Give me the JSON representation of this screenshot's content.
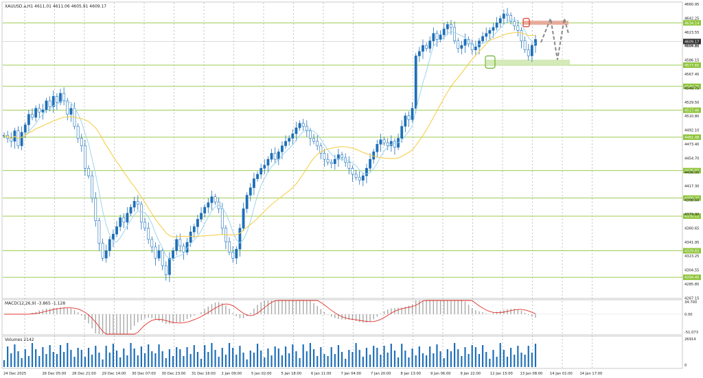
{
  "symbol_header": "XAUUSD.a,H1  4611.01 4611.06 4605.91 4609.17",
  "macd_label": "MACD(12,26,9) -3.865 -1.128",
  "volume_label": "Volumes 2142",
  "price_axis": {
    "labels": [
      "4660.95",
      "4642.25",
      "4623.55",
      "4604.85",
      "4586.15",
      "4567.45",
      "4548.75",
      "4529.50",
      "4510.80",
      "4492.10",
      "4473.40",
      "4454.70",
      "4436.00",
      "4417.30",
      "4398.60",
      "4379.90",
      "4360.65",
      "4341.95",
      "4323.25",
      "4304.55",
      "4285.85",
      "4267.15"
    ],
    "current_price": "4609.17",
    "current_ask": "4604.82",
    "level_values": [
      "4634.14",
      "4577.65",
      "4549.36",
      "4517.46",
      "4481.48",
      "4436.83",
      "4400.20",
      "4376.12",
      "4329.83",
      "4294.45"
    ]
  },
  "macd_axis": [
    "34.700",
    "0.00",
    "-51.073"
  ],
  "volume_axis": [
    "26914",
    "0"
  ],
  "time_axis": [
    "24 Dec 2025",
    "26 Dec 05:00",
    "26 Dec 21:00",
    "29 Dec 14:00",
    "30 Dec 07:00",
    "30 Dec 23:00",
    "31 Dec 16:00",
    "2 Jan 09:00",
    "5 Jan 02:00",
    "5 Jan 18:00",
    "6 Jan 11:00",
    "7 Jan 04:00",
    "7 Jan 20:00",
    "8 Jan 13:00",
    "9 Jan 06:00",
    "9 Jan 22:00",
    "12 Jan 15:00",
    "13 Jan 08:00",
    "14 Jan 01:00",
    "14 Jan 17:00"
  ],
  "colors": {
    "bull": "#1e6fb8",
    "bear": "#1e6fb8",
    "level_line": "#8fc43a",
    "ma_fast": "#9dd3ee",
    "ma_slow": "#f5cf4b",
    "macd_signal": "#e0302a",
    "macd_hist": "#a8a8a8",
    "volume": "#1e6fb8",
    "resistance_zone": "#e8a190",
    "support_zone": "#cfe8b0",
    "projection": "#888888"
  },
  "chart_data": [
    {
      "type": "candlestick",
      "title": "XAUUSD.a,H1",
      "ylim": [
        4267.15,
        4660.95
      ],
      "closes": [
        4484,
        4480,
        4476,
        4490,
        4470,
        4488,
        4498,
        4512,
        4508,
        4520,
        4515,
        4518,
        4530,
        4522,
        4536,
        4528,
        4540,
        4530,
        4512,
        4520,
        4496,
        4480,
        4470,
        4440,
        4430,
        4400,
        4370,
        4340,
        4320,
        4330,
        4345,
        4352,
        4362,
        4374,
        4368,
        4380,
        4388,
        4396,
        4392,
        4368,
        4360,
        4345,
        4335,
        4320,
        4330,
        4310,
        4298,
        4320,
        4330,
        4345,
        4336,
        4328,
        4341,
        4355,
        4362,
        4372,
        4380,
        4388,
        4394,
        4402,
        4395,
        4386,
        4360,
        4342,
        4328,
        4320,
        4332,
        4360,
        4386,
        4404,
        4414,
        4426,
        4432,
        4440,
        4444,
        4452,
        4460,
        4452,
        4462,
        4470,
        4476,
        4480,
        4486,
        4494,
        4500,
        4496,
        4490,
        4480,
        4476,
        4470,
        4460,
        4452,
        4448,
        4446,
        4452,
        4458,
        4454,
        4448,
        4440,
        4432,
        4428,
        4424,
        4430,
        4440,
        4452,
        4462,
        4472,
        4478,
        4474,
        4470,
        4476,
        4468,
        4480,
        4496,
        4510,
        4505,
        4520,
        4590,
        4596,
        4604,
        4600,
        4610,
        4620,
        4612,
        4618,
        4626,
        4632,
        4628,
        4610,
        4600,
        4604,
        4612,
        4606,
        4598,
        4602,
        4610,
        4616,
        4620,
        4624,
        4628,
        4634,
        4640,
        4646,
        4644,
        4636,
        4630,
        4624,
        4610,
        4598,
        4590,
        4604,
        4612
      ],
      "ma_fast_label": "",
      "ma_slow_label": ""
    }
  ]
}
